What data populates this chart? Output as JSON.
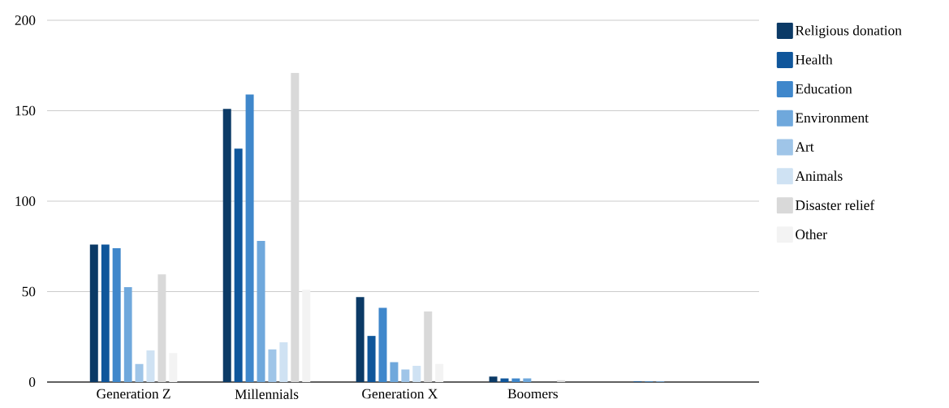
{
  "chart_data": {
    "type": "bar",
    "categories": [
      "Generation Z",
      "Millennials",
      "Generation X",
      "Boomers",
      null
    ],
    "series": [
      {
        "name": "Religious donation",
        "color": "#0b3a66",
        "values": [
          76,
          151,
          47,
          3,
          null
        ]
      },
      {
        "name": "Health",
        "color": "#0f569b",
        "values": [
          76,
          129,
          25.5,
          2,
          0.3
        ]
      },
      {
        "name": "Education",
        "color": "#3f87cb",
        "values": [
          74,
          159,
          41,
          2,
          0.3
        ]
      },
      {
        "name": "Environment",
        "color": "#6fa8dc",
        "values": [
          52.5,
          78,
          11,
          2,
          0.3
        ]
      },
      {
        "name": "Art",
        "color": "#9fc5e8",
        "values": [
          10,
          18,
          7,
          0,
          null
        ]
      },
      {
        "name": "Animals",
        "color": "#cfe2f3",
        "values": [
          17.5,
          22,
          9,
          0,
          null
        ]
      },
      {
        "name": "Disaster relief",
        "color": "#d9d9d9",
        "values": [
          59.5,
          171,
          39,
          1,
          null
        ]
      },
      {
        "name": "Other",
        "color": "#f3f3f3",
        "values": [
          16,
          51,
          10,
          0,
          null
        ]
      }
    ],
    "ylim": [
      0,
      200
    ],
    "yticks": [
      0,
      50,
      100,
      150,
      200
    ],
    "grid": "y",
    "legend": "right"
  }
}
